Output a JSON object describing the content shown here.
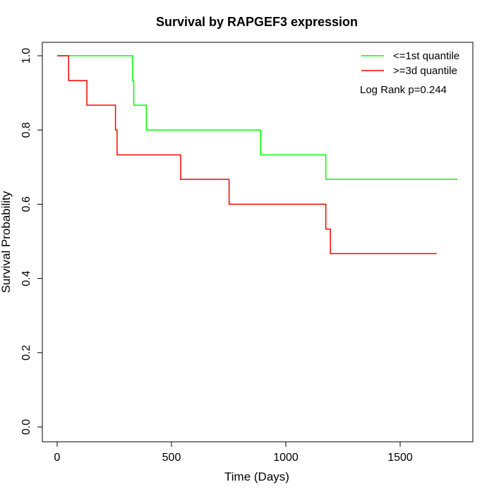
{
  "chart_data": {
    "type": "line",
    "subtype": "kaplan-meier-step",
    "title": "Survival by RAPGEF3 expression",
    "xlabel": "Time (Days)",
    "ylabel": "Survival Probability",
    "xlim": [
      0,
      1750
    ],
    "ylim": [
      0,
      1
    ],
    "x_ticks": [
      0,
      500,
      1000,
      1500
    ],
    "x_tick_labels": [
      "0",
      "500",
      "1000",
      "1500"
    ],
    "y_ticks": [
      0,
      0.2,
      0.4,
      0.6,
      0.8,
      1.0
    ],
    "y_tick_labels": [
      "0.0",
      "0.2",
      "0.4",
      "0.6",
      "0.8",
      "1.0"
    ],
    "grid": false,
    "legend_position": "top-right",
    "annotation": "Log Rank p=0.244",
    "series": [
      {
        "name": "<=1st quantile",
        "color": "#00ff00",
        "x": [
          0,
          330,
          335,
          390,
          890,
          1175,
          1750
        ],
        "y": [
          1.0,
          0.933,
          0.867,
          0.8,
          0.733,
          0.667,
          0.667
        ]
      },
      {
        "name": ">=3d quantile",
        "color": "#ff0000",
        "x": [
          0,
          50,
          130,
          255,
          262,
          540,
          752,
          1175,
          1195,
          1660
        ],
        "y": [
          1.0,
          0.933,
          0.867,
          0.8,
          0.733,
          0.667,
          0.6,
          0.533,
          0.467,
          0.467
        ]
      }
    ]
  }
}
